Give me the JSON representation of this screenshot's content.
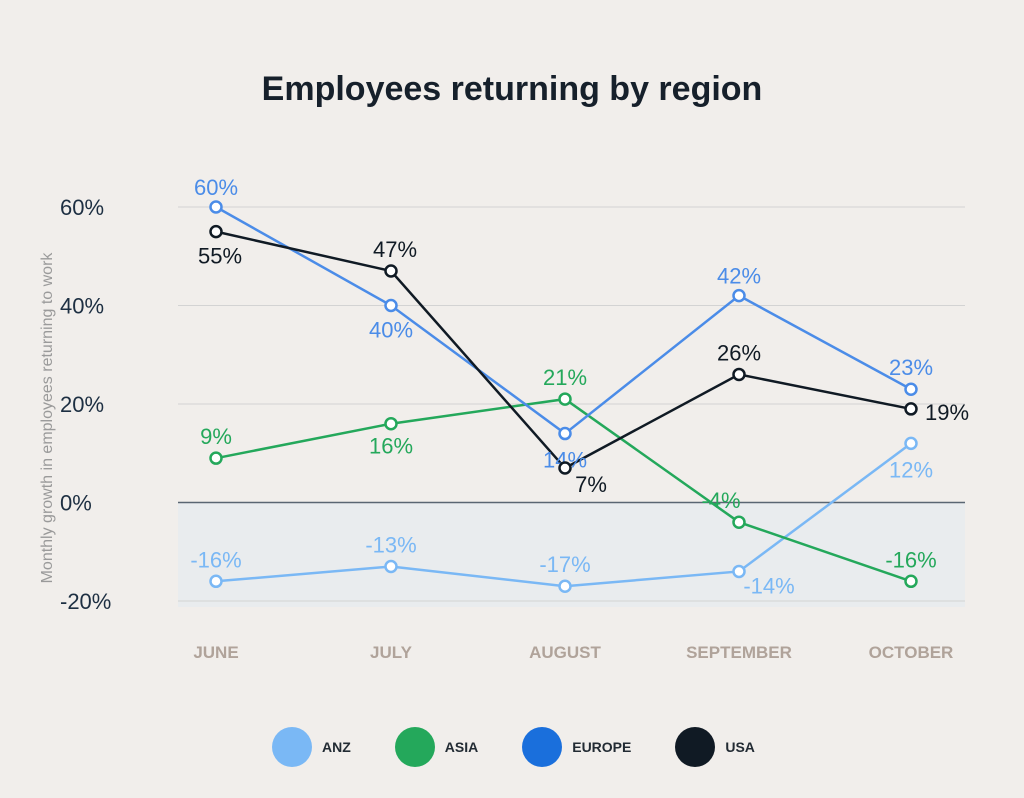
{
  "chart_data": {
    "type": "line",
    "title": "Employees returning by region",
    "xlabel": "",
    "ylabel": "Monthly growth in employees returning to work",
    "categories": [
      "JUNE",
      "JULY",
      "AUGUST",
      "SEPTEMBER",
      "OCTOBER"
    ],
    "ylim": [
      -20,
      60
    ],
    "yticks": [
      60,
      40,
      20,
      0,
      -20
    ],
    "ytick_labels": [
      "60%",
      "40%",
      "20%",
      "0%",
      "-20%"
    ],
    "grid": true,
    "legend_position": "bottom-center",
    "series": [
      {
        "name": "ANZ",
        "color": "#7ab8f5",
        "values": [
          -16,
          -13,
          -17,
          -14,
          12
        ],
        "labels": [
          "-16%",
          "-13%",
          "-17%",
          "-14%",
          "12%"
        ]
      },
      {
        "name": "ASIA",
        "color": "#24a85b",
        "values": [
          9,
          16,
          21,
          -4,
          -16
        ],
        "labels": [
          "9%",
          "16%",
          "21%",
          "-4%",
          "-16%"
        ]
      },
      {
        "name": "EUROPE",
        "color": "#1a6fdc",
        "line_color": "#4b8ce8",
        "values": [
          60,
          40,
          14,
          42,
          23
        ],
        "labels": [
          "60%",
          "40%",
          "14%",
          "42%",
          "23%"
        ]
      },
      {
        "name": "USA",
        "color": "#101a24",
        "values": [
          55,
          47,
          7,
          26,
          19
        ],
        "labels": [
          "55%",
          "47%",
          "7%",
          "26%",
          "19%"
        ]
      }
    ]
  }
}
